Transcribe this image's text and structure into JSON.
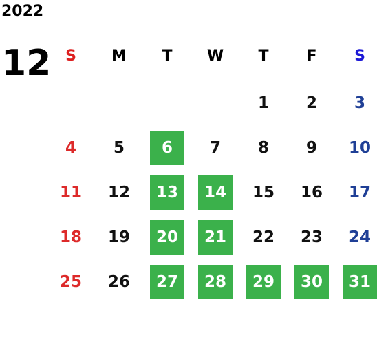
{
  "calendar": {
    "year": "2022",
    "month": "12",
    "weekdays": [
      "S",
      "M",
      "T",
      "W",
      "T",
      "F",
      "S"
    ],
    "first_weekday_index": 4,
    "days": [
      {
        "label": "1",
        "highlighted": false
      },
      {
        "label": "2",
        "highlighted": false
      },
      {
        "label": "3",
        "highlighted": false
      },
      {
        "label": "4",
        "highlighted": false
      },
      {
        "label": "5",
        "highlighted": false
      },
      {
        "label": "6",
        "highlighted": true
      },
      {
        "label": "7",
        "highlighted": false
      },
      {
        "label": "8",
        "highlighted": false
      },
      {
        "label": "9",
        "highlighted": false
      },
      {
        "label": "10",
        "highlighted": false
      },
      {
        "label": "11",
        "highlighted": false
      },
      {
        "label": "12",
        "highlighted": false
      },
      {
        "label": "13",
        "highlighted": true
      },
      {
        "label": "14",
        "highlighted": true
      },
      {
        "label": "15",
        "highlighted": false
      },
      {
        "label": "16",
        "highlighted": false
      },
      {
        "label": "17",
        "highlighted": false
      },
      {
        "label": "18",
        "highlighted": false
      },
      {
        "label": "19",
        "highlighted": false
      },
      {
        "label": "20",
        "highlighted": true
      },
      {
        "label": "21",
        "highlighted": true
      },
      {
        "label": "22",
        "highlighted": false
      },
      {
        "label": "23",
        "highlighted": false
      },
      {
        "label": "24",
        "highlighted": false
      },
      {
        "label": "25",
        "highlighted": false
      },
      {
        "label": "26",
        "highlighted": false
      },
      {
        "label": "27",
        "highlighted": true
      },
      {
        "label": "28",
        "highlighted": true
      },
      {
        "label": "29",
        "highlighted": true
      },
      {
        "label": "30",
        "highlighted": true
      },
      {
        "label": "31",
        "highlighted": true
      }
    ]
  },
  "colors": {
    "sunday_header": "#dd1f1f",
    "saturday_header": "#1c18d6",
    "sunday_day": "#dd2a2a",
    "saturday_day": "#1f3f96",
    "highlight_bg": "#3bb14b",
    "highlight_text": "#ffffff"
  }
}
